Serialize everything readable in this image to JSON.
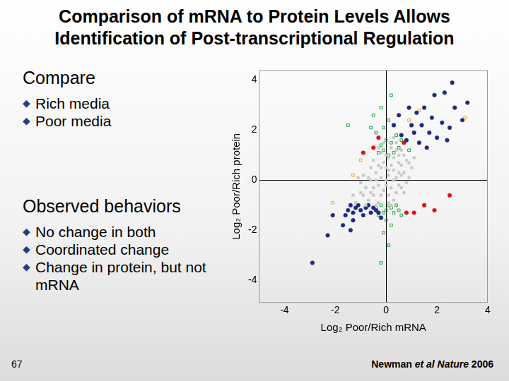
{
  "slide": {
    "title": [
      "Comparison of mRNA to Protein Levels Allows",
      "Identification of Post-transcriptional Regulation"
    ],
    "compare_heading": "Compare",
    "compare_items": [
      "Rich media",
      "Poor media"
    ],
    "observed_heading": "Observed behaviors",
    "observed_items": [
      "No change in both",
      "Coordinated change",
      "Change in protein, but not mRNA"
    ],
    "page_number": "67",
    "citation": [
      {
        "text": "Newman "
      },
      {
        "text": "et al Nature",
        "italic": true
      },
      {
        "text": " 2006"
      }
    ]
  },
  "chart_data": {
    "type": "scatter",
    "x_label": "Log₂ Poor/Rich mRNA",
    "y_label": "Log₂ Poor/Rich protein",
    "xlim": [
      -5,
      4
    ],
    "ylim": [
      -4.9,
      4.4
    ],
    "xticks": [
      -4,
      -2,
      0,
      2,
      4
    ],
    "yticks": [
      -4,
      -2,
      0,
      2,
      4
    ],
    "series": [
      {
        "color": "#c8c8c8",
        "marker": "square",
        "values": [
          [
            -1,
            -0.5
          ],
          [
            -0.8,
            -0.3
          ],
          [
            -0.6,
            0
          ],
          [
            -0.5,
            -0.6
          ],
          [
            -0.4,
            0.3
          ],
          [
            -0.3,
            -0.2
          ],
          [
            -0.2,
            0.5
          ],
          [
            -0.1,
            -0.4
          ],
          [
            0,
            0
          ],
          [
            0.1,
            0.2
          ],
          [
            0.2,
            -0.3
          ],
          [
            0.3,
            0.4
          ],
          [
            0.4,
            0.1
          ],
          [
            0.5,
            -0.2
          ],
          [
            0.6,
            0.6
          ],
          [
            0.7,
            0.3
          ],
          [
            0.8,
            0.8
          ],
          [
            -0.7,
            -0.8
          ],
          [
            -0.9,
            0.2
          ],
          [
            -1.2,
            -0.9
          ],
          [
            -1.1,
            0.1
          ],
          [
            0,
            1
          ],
          [
            0.2,
            1.3
          ],
          [
            -0.2,
            1.1
          ],
          [
            0.4,
            1.5
          ],
          [
            0.1,
            -0.9
          ],
          [
            -0.3,
            -0.9
          ],
          [
            0.3,
            -0.8
          ],
          [
            0.9,
            0.1
          ],
          [
            1,
            0.5
          ],
          [
            -0.5,
            0.8
          ],
          [
            -0.4,
            -1
          ],
          [
            0.5,
            1
          ],
          [
            0.6,
            1.2
          ],
          [
            -0.1,
            0.7
          ],
          [
            0.1,
            -0.6
          ],
          [
            -0.6,
            0.5
          ],
          [
            0.3,
            0.9
          ],
          [
            0,
            -0.2
          ],
          [
            -0.2,
            0.1
          ],
          [
            0.2,
            0.6
          ],
          [
            -0.8,
            -1
          ],
          [
            0.7,
            -0.5
          ],
          [
            0.5,
            0.3
          ],
          [
            -0.1,
            1.5
          ],
          [
            0.3,
            1.7
          ],
          [
            -1,
            -0.1
          ],
          [
            -1.3,
            -0.6
          ],
          [
            0.8,
            -0.1
          ],
          [
            1.1,
            0.9
          ],
          [
            0.4,
            -0.5
          ],
          [
            -0.5,
            -0.3
          ],
          [
            0.1,
            0.4
          ],
          [
            -0.3,
            0.6
          ],
          [
            0.6,
            -0.3
          ],
          [
            -0.7,
            0.1
          ],
          [
            0.9,
            0.7
          ],
          [
            0.2,
            -1
          ],
          [
            -0.6,
            -0.5
          ],
          [
            0,
            0.5
          ],
          [
            -0.4,
            0
          ],
          [
            0.5,
            0.7
          ],
          [
            0.3,
            0
          ],
          [
            -0.2,
            -0.6
          ],
          [
            0.1,
            0.9
          ],
          [
            -0.9,
            -0.6
          ],
          [
            0.7,
            1
          ],
          [
            0.4,
            1.2
          ],
          [
            -0.3,
            1.3
          ],
          [
            0.6,
            0.2
          ]
        ]
      },
      {
        "color": "#1f2a80",
        "marker": "circle",
        "values": [
          [
            2.3,
            3.5
          ],
          [
            2.6,
            3.9
          ],
          [
            1.9,
            3.4
          ],
          [
            1.5,
            2.9
          ],
          [
            1.2,
            2.7
          ],
          [
            1.8,
            2.5
          ],
          [
            2.2,
            2.3
          ],
          [
            2.7,
            2.9
          ],
          [
            1,
            2.2
          ],
          [
            1.4,
            2.2
          ],
          [
            1.7,
            1.9
          ],
          [
            2,
            1.7
          ],
          [
            2.4,
            1.6
          ],
          [
            1.1,
            1.9
          ],
          [
            0.8,
            1.6
          ],
          [
            1.3,
            1.5
          ],
          [
            2.5,
            2.1
          ],
          [
            3,
            2.4
          ],
          [
            0.3,
            2.2
          ],
          [
            0.5,
            2.6
          ],
          [
            0.6,
            1.8
          ],
          [
            1.6,
            1.3
          ],
          [
            3.2,
            3.1
          ],
          [
            0.9,
            2.9
          ],
          [
            -1.4,
            -1
          ],
          [
            -1.2,
            -1.1
          ],
          [
            -1,
            -1.2
          ],
          [
            -0.8,
            -1.1
          ],
          [
            -0.6,
            -1.3
          ],
          [
            -0.4,
            -1.2
          ],
          [
            -1.3,
            -1.3
          ],
          [
            -0.9,
            -1.4
          ],
          [
            -0.7,
            -1
          ],
          [
            -0.5,
            -1.1
          ],
          [
            -1.1,
            -1
          ],
          [
            -0.3,
            -1.3
          ],
          [
            -1.5,
            -1.2
          ],
          [
            -1.6,
            -1.4
          ],
          [
            -0.2,
            -1.5
          ],
          [
            -2.1,
            -1.4
          ],
          [
            -1.7,
            -1.8
          ],
          [
            -2.3,
            -2.2
          ],
          [
            -1.4,
            -2
          ],
          [
            -2.9,
            -3.3
          ],
          [
            -1.3,
            -1.6
          ]
        ]
      },
      {
        "color": "#1aa33a",
        "marker": "square-open",
        "values": [
          [
            -0.3,
            1.1
          ],
          [
            -0.1,
            1.2
          ],
          [
            0.1,
            1
          ],
          [
            0.3,
            1.1
          ],
          [
            0.5,
            1.3
          ],
          [
            -0.2,
            1.4
          ],
          [
            0,
            1.6
          ],
          [
            0.2,
            1.5
          ],
          [
            0.4,
            1.8
          ],
          [
            -0.4,
            1.9
          ],
          [
            -0.1,
            2.1
          ],
          [
            0.1,
            2.4
          ],
          [
            -0.5,
            2.6
          ],
          [
            0.3,
            2.2
          ],
          [
            -0.2,
            2.9
          ],
          [
            0.6,
            1.6
          ],
          [
            -0.6,
            2.1
          ],
          [
            0.2,
            3.4
          ],
          [
            -1.5,
            2.2
          ],
          [
            0.9,
            1.2
          ],
          [
            -0.4,
            -1.1
          ],
          [
            -0.2,
            -1
          ],
          [
            0,
            -1.2
          ],
          [
            0.2,
            -1.1
          ],
          [
            0.4,
            -1
          ],
          [
            -0.1,
            -1.3
          ],
          [
            0.1,
            -1
          ],
          [
            0.3,
            -1.3
          ],
          [
            -0.3,
            -1.4
          ],
          [
            0.5,
            -1.2
          ],
          [
            0,
            -1.6
          ],
          [
            -0.1,
            -2.1
          ],
          [
            0.2,
            -1.8
          ],
          [
            0.6,
            -1.4
          ],
          [
            0.1,
            -2.6
          ],
          [
            -0.2,
            -3.3
          ]
        ]
      },
      {
        "color": "#e01010",
        "marker": "circle",
        "values": [
          [
            -0.5,
            1.3
          ],
          [
            -0.3,
            1.7
          ],
          [
            0.7,
            1.5
          ],
          [
            1.9,
            -1.2
          ],
          [
            1.1,
            -1.3
          ],
          [
            1.5,
            -1
          ],
          [
            2.5,
            -0.6
          ],
          [
            0.8,
            -1.3
          ],
          [
            -0.9,
            1.1
          ]
        ]
      },
      {
        "color": "#f0a030",
        "marker": "square-open",
        "values": [
          [
            -1,
            0.8
          ],
          [
            -1.3,
            0.2
          ],
          [
            -2.1,
            -0.9
          ],
          [
            0.9,
            2.4
          ],
          [
            3.1,
            2.5
          ],
          [
            1.3,
            2.8
          ]
        ]
      }
    ]
  }
}
